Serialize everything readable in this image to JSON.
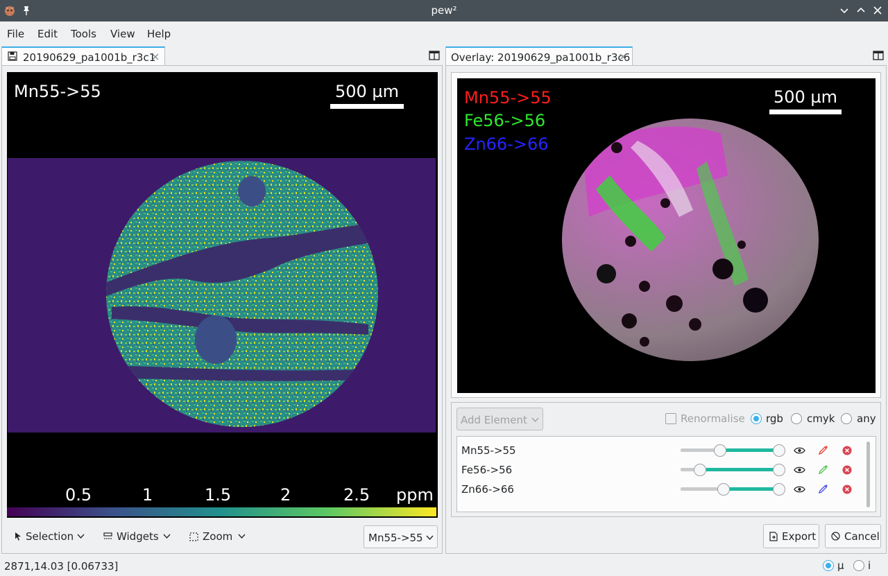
{
  "window": {
    "title": "pew²"
  },
  "menu": [
    "File",
    "Edit",
    "Tools",
    "View",
    "Help"
  ],
  "left_panel": {
    "tab_label": "20190629_pa1001b_r3c1",
    "element_label": "Mn55->55",
    "scalebar_label": "500 µm",
    "colorbar": {
      "ticks": [
        "0.5",
        "1",
        "1.5",
        "2",
        "2.5"
      ],
      "unit": "ppm"
    },
    "toolbar": {
      "selection": "Selection",
      "widgets": "Widgets",
      "zoom": "Zoom"
    },
    "element_combo": "Mn55->55"
  },
  "right_panel": {
    "tab_label": "Overlay: 20190629_pa1001b_r3c6",
    "labels": [
      {
        "text": "Mn55->55",
        "color": "#ff1d1d"
      },
      {
        "text": "Fe56->56",
        "color": "#2ee82e"
      },
      {
        "text": "Zn66->66",
        "color": "#2424ff"
      }
    ],
    "scalebar_label": "500 µm",
    "add_element": "Add Element",
    "renormalise": "Renormalise",
    "modes": [
      "rgb",
      "cmyk",
      "any"
    ],
    "selected_mode": "rgb",
    "elements": [
      {
        "name": "Mn55->55",
        "color": "#e8453c",
        "low": 0.4,
        "high": 1.0
      },
      {
        "name": "Fe56->56",
        "color": "#55c552",
        "low": 0.2,
        "high": 1.0
      },
      {
        "name": "Zn66->66",
        "color": "#4f52e8",
        "low": 0.44,
        "high": 1.0
      }
    ],
    "export": "Export",
    "cancel": "Cancel"
  },
  "status": {
    "coords": "2871,14.03 [0.06733]",
    "unit_options": [
      "μ",
      "i"
    ],
    "selected_unit": "μ"
  },
  "colors": {
    "accent": "#3daee9",
    "titlebar": "#475057",
    "close_red": "#da4453"
  }
}
